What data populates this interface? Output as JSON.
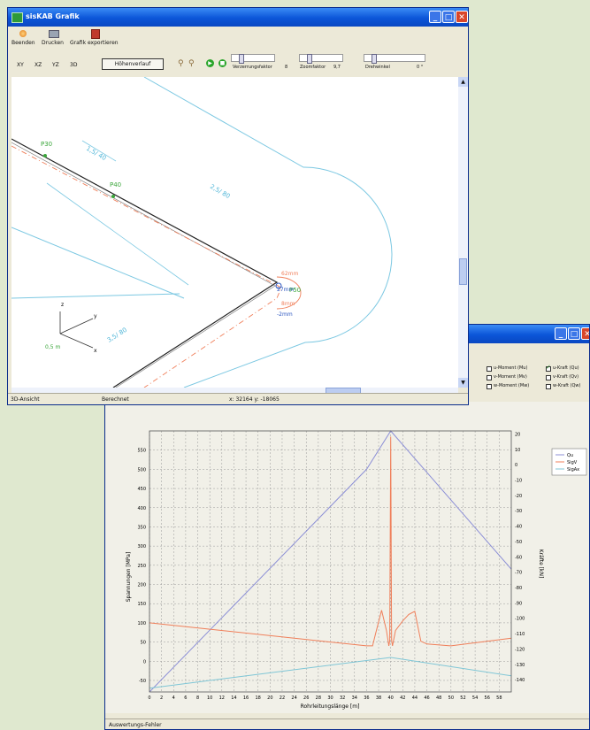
{
  "window_grafik": {
    "title": "sisKAB Grafik",
    "toolbar": {
      "exit_label": "Beenden",
      "print_label": "Drucken",
      "export_label": "Grafik exportieren"
    },
    "views": {
      "xy": "XY",
      "xz": "XZ",
      "yz": "YZ",
      "three_d": "3D",
      "height_profile_button": "Höhenverlauf"
    },
    "sliders": {
      "distortion_label": "Verzerrungsfaktor",
      "distortion_value": "8",
      "zoom_label": "Zoomfaktor",
      "zoom_value": "9,7",
      "rotation_label": "Drehwinkel",
      "rotation_value": "0 °"
    },
    "drawing": {
      "labels": {
        "p30": "P30",
        "p40": "P40",
        "p50": "P50",
        "seg_15_40": "1,5/ 40",
        "seg_25_80": "2,5/ 80",
        "seg_35_80": "3,5/ 80",
        "mm_62": "62mm",
        "mm_27": "27mm",
        "mm_8": "8mm",
        "mm_minus2": "-2mm",
        "axis_z": "z",
        "axis_y": "y",
        "axis_x": "x",
        "scale": "0,5 m"
      }
    },
    "status": {
      "mode": "3D-Ansicht",
      "state": "Berechnet",
      "coords": "x: 32164 y: -18065"
    }
  },
  "window_diagram": {
    "options": [
      {
        "label": "u-Moment (Mu)",
        "checked": false
      },
      {
        "label": "v-Moment (Mv)",
        "checked": false
      },
      {
        "label": "w-Moment (Mw)",
        "checked": false
      },
      {
        "label": "u-Kraft (Qu)",
        "checked": true
      },
      {
        "label": "v-Kraft (Qv)",
        "checked": false
      },
      {
        "label": "w-Kraft (Qw)",
        "checked": false
      }
    ],
    "status": {
      "left": "Auswertungs-Fehler"
    },
    "colors": {
      "qu": "#8c8fd6",
      "sigv": "#f07f5a",
      "sigax": "#7fc6d6"
    }
  },
  "chart_data": {
    "type": "line",
    "xlabel": "Rohrleitungslänge [m]",
    "ylabel": "Spannungen [MPa]",
    "y2label": "Kräfte [kN]",
    "x_ticks": [
      0,
      2,
      4,
      6,
      8,
      10,
      12,
      14,
      16,
      18,
      20,
      22,
      24,
      26,
      28,
      30,
      32,
      34,
      36,
      38,
      40,
      42,
      44,
      46,
      48,
      50,
      52,
      54,
      56,
      58
    ],
    "y_ticks": [
      550,
      500,
      450,
      400,
      350,
      300,
      250,
      200,
      150,
      100,
      50,
      0,
      -50
    ],
    "y2_ticks": [
      20,
      10,
      0,
      -10,
      -20,
      -30,
      -40,
      -50,
      -60,
      -70,
      -80,
      -90,
      -100,
      -110,
      -120,
      -130,
      -140
    ],
    "xlim": [
      0,
      60
    ],
    "ylim": [
      -80,
      600
    ],
    "y2lim": [
      -148,
      22
    ],
    "grid": true,
    "legend": "top-right",
    "series": [
      {
        "name": "Qu",
        "axis": "right",
        "x": [
          0,
          36,
          40,
          60
        ],
        "values": [
          -148,
          -3,
          22,
          -68
        ]
      },
      {
        "name": "SigV",
        "axis": "left",
        "x": [
          0,
          36,
          37,
          37.5,
          38.5,
          39.3,
          39.7,
          39.85,
          40,
          40.15,
          40.3,
          40.8,
          42,
          43,
          44,
          45,
          46,
          50,
          60
        ],
        "values": [
          100,
          40,
          40,
          72,
          133,
          80,
          40,
          55,
          585,
          55,
          40,
          80,
          105,
          122,
          130,
          52,
          45,
          40,
          60
        ]
      },
      {
        "name": "SigAx",
        "axis": "left",
        "x": [
          0,
          40,
          60
        ],
        "values": [
          -70,
          10,
          -38
        ]
      }
    ]
  }
}
